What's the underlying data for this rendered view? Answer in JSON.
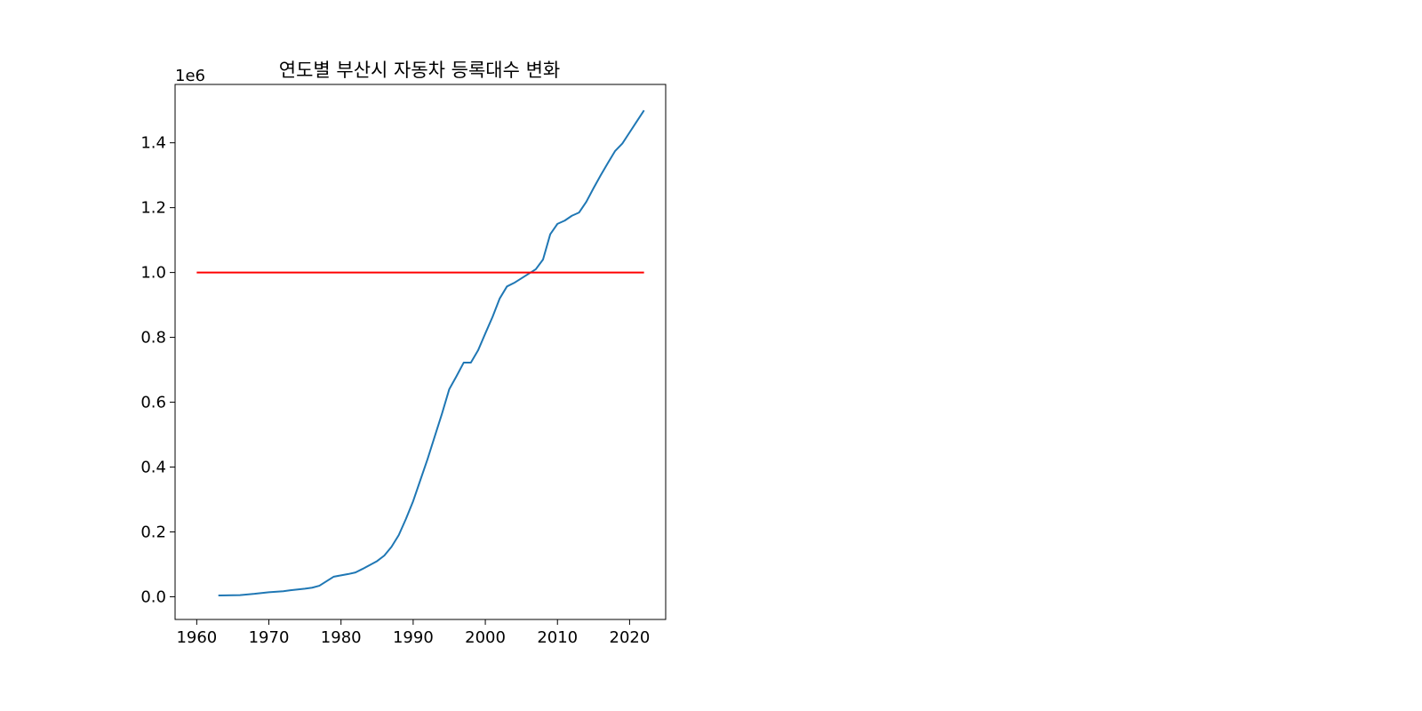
{
  "chart_data": {
    "type": "line",
    "title": "연도별 부산시 자동차 등록대수 변화",
    "xlabel": "",
    "ylabel": "",
    "y_offset_label": "1e6",
    "xlim": [
      1957,
      2025
    ],
    "ylim": [
      -0.07,
      1.58
    ],
    "x_ticks": [
      1960,
      1970,
      1980,
      1990,
      2000,
      2010,
      2020
    ],
    "x_tick_labels": [
      "1960",
      "1970",
      "1980",
      "1990",
      "2000",
      "2010",
      "2020"
    ],
    "y_ticks": [
      0.0,
      0.2,
      0.4,
      0.6,
      0.8,
      1.0,
      1.2,
      1.4
    ],
    "y_tick_labels": [
      "0.0",
      "0.2",
      "0.4",
      "0.6",
      "0.8",
      "1.0",
      "1.2",
      "1.4"
    ],
    "grid": false,
    "series": [
      {
        "color": "#1f77b4",
        "x": [
          1963,
          1966,
          1968,
          1970,
          1972,
          1973,
          1975,
          1976,
          1977,
          1978,
          1979,
          1980,
          1981,
          1982,
          1983,
          1984,
          1985,
          1986,
          1987,
          1988,
          1989,
          1990,
          1991,
          1992,
          1993,
          1994,
          1995,
          1996,
          1997,
          1998,
          1999,
          2000,
          2001,
          2002,
          2003,
          2004,
          2005,
          2006,
          2007,
          2008,
          2009,
          2010,
          2011,
          2012,
          2013,
          2014,
          2015,
          2016,
          2017,
          2018,
          2019,
          2020,
          2021,
          2022
        ],
        "y": [
          0.004,
          0.005,
          0.009,
          0.014,
          0.017,
          0.02,
          0.025,
          0.028,
          0.034,
          0.048,
          0.062,
          0.066,
          0.07,
          0.075,
          0.086,
          0.098,
          0.11,
          0.127,
          0.154,
          0.19,
          0.24,
          0.295,
          0.36,
          0.425,
          0.495,
          0.565,
          0.64,
          0.68,
          0.722,
          0.722,
          0.76,
          0.812,
          0.863,
          0.92,
          0.957,
          0.968,
          0.982,
          0.996,
          1.01,
          1.04,
          1.118,
          1.15,
          1.16,
          1.175,
          1.185,
          1.218,
          1.26,
          1.3,
          1.338,
          1.375,
          1.398,
          1.432,
          1.466,
          1.5
        ]
      },
      {
        "color": "#ff0000",
        "x": [
          1960,
          2022
        ],
        "y": [
          1.0,
          1.0
        ]
      }
    ]
  }
}
